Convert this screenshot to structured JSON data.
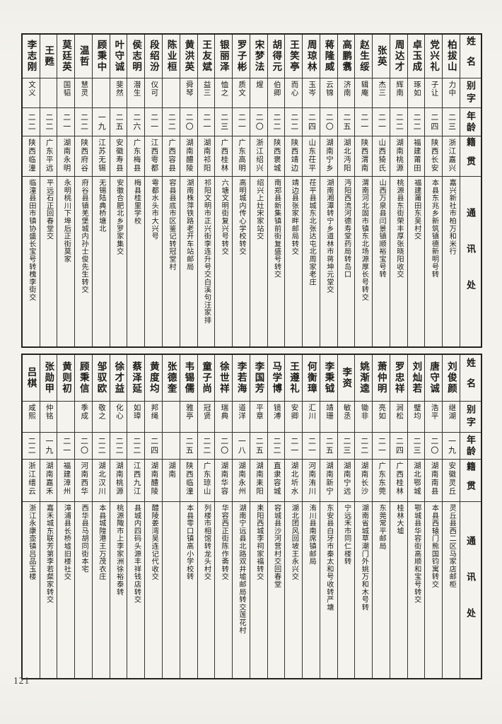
{
  "page": {
    "number": "121"
  },
  "field_labels": {
    "name": "姓名",
    "courtesy": "别字",
    "age": "年龄",
    "native": "籍贯",
    "address": "通讯处"
  },
  "tables": [
    {
      "id": "top",
      "persons": [
        {
          "name": "柏拔山",
          "courtesy": "力中",
          "age": "二三",
          "native": "浙江嘉兴",
          "address": "嘉兴新社市柏万和米行"
        },
        {
          "name": "党兴礼",
          "courtesy": "子让",
          "age": "二四",
          "native": "陕西长安",
          "address": "本县东兆乡新筑镇德新明号转"
        },
        {
          "name": "卓玉成",
          "courtesy": "琢如",
          "age": "二二",
          "native": "福建莆田",
          "address": "福建莆田东吴村交"
        },
        {
          "name": "周达才",
          "courtesy": "辉南",
          "age": "二二",
          "native": "湖南桃源",
          "address": "桃源县东街荣丰厚张晓阳收交"
        },
        {
          "name": "张英",
          "courtesy": "杰三",
          "age": "二一",
          "native": "山西猗氏",
          "address": "山西万泉县闫景镇顺裕宝号转"
        },
        {
          "name": "赵生绥",
          "courtesy": "辑庵",
          "age": "二一",
          "native": "陕西渭南",
          "address": "渭南河北固市镇东北场源厚长号转交"
        },
        {
          "name": "高鹏翥",
          "courtesy": "济南",
          "age": "二五",
          "native": "湖北沔阳",
          "address": "沔阳西流河德寿堂药局转岛口"
        },
        {
          "name": "蒋隆威",
          "courtesy": "云锦",
          "age": "二〇",
          "native": "湖南宁乡",
          "address": "湖南湘潭转宁乡道林市蒋坤元堂交"
        },
        {
          "name": "周琼林",
          "courtesy": "玉岑",
          "age": "二四",
          "native": "山东茌平",
          "address": "茌平县城东北张达屯北周家老庄"
        },
        {
          "name": "王笑亭",
          "courtesy": "而心",
          "age": "二二",
          "native": "陕西靖边",
          "address": "靖边县张家畔邮局转交"
        },
        {
          "name": "胡得元",
          "courtesy": "伯卿",
          "age": "二二",
          "native": "陕西褒城",
          "address": "南郑县新集镇前街复盛号转交"
        },
        {
          "name": "宋梦法",
          "courtesy": "煋",
          "age": "二〇",
          "native": "浙江绍兴",
          "address": "绍兴上灶宋家站交"
        },
        {
          "name": "罗子彬",
          "courtesy": "质文",
          "age": "二一",
          "native": "广东高明",
          "address": "高明城内传心学校转交"
        },
        {
          "name": "银丽泽",
          "courtesy": "恤之",
          "age": "二三",
          "native": "广西桂林",
          "address": "六塘文明街复兴号转交"
        },
        {
          "name": "王友斌",
          "courtesy": "益三",
          "age": "二一",
          "native": "湖南祁阳",
          "address": "祁阳文明市正兴街李连升号交白溪句汪家排"
        },
        {
          "name": "黄洪英",
          "courtesy": "舜琴",
          "age": "二〇",
          "native": "湖南醴陵",
          "address": "湖南株萍铁路老开车站邮局"
        },
        {
          "name": "陈业桓",
          "courtesy": "",
          "age": "二二",
          "native": "广西容县",
          "address": "容县县底市区鉴记转冠堂村"
        },
        {
          "name": "段绍汾",
          "courtesy": "仪可",
          "age": "二一",
          "native": "江西雩都",
          "address": "雩都水头市大兴号"
        },
        {
          "name": "侯志明",
          "courtesy": "潜生",
          "age": "二六",
          "native": "广东梅县",
          "address": "梅县桂里学校"
        },
        {
          "name": "叶守诚",
          "courtesy": "斐然",
          "age": "二五",
          "native": "安徽寿县",
          "address": "安徽合肥北乡罗家集交"
        },
        {
          "name": "顾秉中",
          "courtesy": "",
          "age": "一九",
          "native": "江苏无锡",
          "address": "无锡陆典桥塘北"
        },
        {
          "name": "温哲",
          "courtesy": "慧灵",
          "age": "二二",
          "native": "陕西府谷",
          "address": "府谷县镇羌堡城内孙士俊先生转交"
        },
        {
          "name": "莫廷英",
          "courtesy": "国韬",
          "age": "二一",
          "native": "湖南永明",
          "address": "永明桃川下埠后正街莫家"
        },
        {
          "name": "王甦",
          "courtesy": "",
          "age": "二二",
          "native": "广东平远",
          "address": "平远石正回春堂交"
        },
        {
          "name": "李志刚",
          "courtesy": "文义",
          "age": "二二",
          "native": "陕西临潼",
          "address": "临潼县田市镇协盛长宝号转槐李街交"
        }
      ]
    },
    {
      "id": "bottom",
      "persons": [
        {
          "name": "刘俊颜",
          "courtesy": "继湖",
          "age": "一九",
          "native": "安徽灵丘",
          "address": "灵丘县西二区马家店邮柜"
        },
        {
          "name": "唐守诚",
          "courtesy": "浩平",
          "age": "二〇",
          "native": "湖南南县",
          "address": "本县西辕门熊国钧寓转交"
        },
        {
          "name": "刘灿若",
          "courtesy": "璧均",
          "age": "二三",
          "native": "湖北鄂城",
          "address": "鄂城县华容街高顺和宝号转交"
        },
        {
          "name": "罗忠祥",
          "courtesy": "涧松",
          "age": "二四",
          "native": "广西桂林",
          "address": "桂林大墟"
        },
        {
          "name": "萧仲明",
          "courtesy": "亮如",
          "age": "二一",
          "native": "广东东莞",
          "address": "东莞常平邮局"
        },
        {
          "name": "姚渐逵",
          "courtesy": "锄非",
          "age": "二二",
          "native": "湖南长沙",
          "address": "湖南省城草潮门外姚万和木号转"
        },
        {
          "name": "李资",
          "courtesy": "敏丞",
          "age": "二三",
          "native": "湖南宁远",
          "address": "宁远禾市同仁楼转"
        },
        {
          "name": "李秉钺",
          "courtesy": "靖珊",
          "age": "二五",
          "native": "湖南新宁",
          "address": "东安县白牙市秦太和号收转严塘"
        },
        {
          "name": "何衡璋",
          "courtesy": "汇川",
          "age": "二一",
          "native": "河南洧川",
          "address": "洧川县南席镇邮局"
        },
        {
          "name": "王遵礼",
          "courtesy": "安卿",
          "age": "二一",
          "native": "湖北圻水",
          "address": "湖北团风回坡王永兴交"
        },
        {
          "name": "马学博",
          "courtesy": "镜溥",
          "age": "二二",
          "native": "直隶容城",
          "address": "容城县沙河营村交回春堂"
        },
        {
          "name": "李国芳",
          "courtesy": "平章",
          "age": "二五",
          "native": "湖南耒阳",
          "address": "耒阳西城李祠家福转交"
        },
        {
          "name": "李若海",
          "courtesy": "道洋",
          "age": "一八",
          "native": "湖南永州",
          "address": "湖南宁远县北路双井墟邮局转交莲花村"
        },
        {
          "name": "徐世祥",
          "courtesy": "瑞典",
          "age": "二〇",
          "native": "湖南华容",
          "address": "华容西正街陈作斋转交"
        },
        {
          "name": "童子尚",
          "courtesy": "冠贤",
          "age": "二二",
          "native": "广东琼山",
          "address": "列楼市相馆转龙头村交"
        },
        {
          "name": "韦锡儒",
          "courtesy": "雅亭",
          "age": "二五",
          "native": "陕西临潼",
          "address": "本县零口镇高小学校转"
        },
        {
          "name": "张德奎",
          "courtesy": "",
          "age": "",
          "native": "湖南",
          "address": ""
        },
        {
          "name": "黄度均",
          "courtesy": "邦绳",
          "age": "二四",
          "native": "湖南醴陵",
          "address": "醴陵姜湾吴连记代收交"
        },
        {
          "name": "蔡泽延",
          "courtesy": "如璋",
          "age": "二二",
          "native": "江西九江",
          "address": "县城内四码头源丰祥钱店转交"
        },
        {
          "name": "徐才益",
          "courtesy": "化心",
          "age": "二二",
          "native": "湖南桃源",
          "address": "桃源陬市上李家洲徐裕泰转"
        },
        {
          "name": "邹驭欧",
          "courtesy": "敬之",
          "age": "二二",
          "native": "湖北汉川",
          "address": "本县城隍港王万茂衣庄"
        },
        {
          "name": "顾秉信",
          "courtesy": "季成",
          "age": "二〇",
          "native": "河南西华",
          "address": "西华县马胡同街本宅"
        },
        {
          "name": "黄则初",
          "courtesy": "",
          "age": "二一",
          "native": "福建漳州",
          "address": "漳浦县长桥墟旧楼社交"
        },
        {
          "name": "张勋甲",
          "courtesy": "仲铭",
          "age": "一九",
          "native": "湖南嘉禾",
          "address": "嘉禾城东联芳第李若粲家转交"
        },
        {
          "name": "吕棋",
          "courtesy": "咸熙",
          "age": "二二",
          "native": "浙江缙云",
          "address": "浙江永康壶镇吕品玉楼"
        }
      ]
    }
  ]
}
